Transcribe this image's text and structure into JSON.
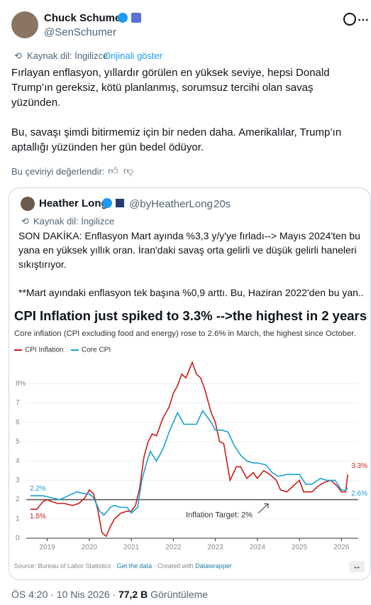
{
  "tweet": {
    "name": "Chuck Schumer",
    "handle": "@SenSchumer",
    "translate_note": "Kaynak dil: İngilizce",
    "show_original": "Orijinali göster",
    "paragraphs": [
      "Fırlayan enflasyon, yıllardır görülen en yüksek seviye, hepsi Donald Trump’ın gereksiz, kötü planlanmış, sorumsuz tercihi olan savaş yüzünden.",
      "Bu, savaşı şimdi bitirmemiz için bir neden daha. Amerikalılar, Trump’ın aptallığı yüzünden her gün bedel ödüyor."
    ],
    "rate": "Bu çeviriyi değerlendir:",
    "time": "ÖS 4:20 · 10 Nis 2026 ·",
    "views": "77,2 B",
    "views_label": "Görüntüleme"
  },
  "quote": {
    "name": "Heather Long",
    "handle": "@byHeatherLong",
    "age": "20s",
    "translate_note": "Kaynak dil: İngilizce",
    "paragraphs": [
      "SON DAKİKA: Enflasyon Mart ayında %3,3 y/y'ye fırladı--> Mayıs 2024'ten bu yana en yüksek yıllık oran. İran'daki savaş orta gelirli ve düşük gelirli haneleri sıkıştırıyor.",
      "**Mart ayındaki enflasyon tek başına %0,9 arttı. Bu, Haziran 2022'den bu yan..."
    ]
  },
  "chart_data": {
    "type": "line",
    "title": "CPI Inflation just spiked to 3.3% -->the highest in 2 years",
    "subtitle": "Core inflation (CPI excluding food and energy) rose to 2.6% in March, the highest since October.",
    "xlim": [
      2018.5,
      2026.4
    ],
    "xticks": [
      2019,
      2020,
      2021,
      2022,
      2023,
      2024,
      2025,
      2026
    ],
    "ylim": [
      0,
      9.3
    ],
    "yticks": [
      0,
      1,
      2,
      3,
      4,
      5,
      6,
      7,
      {
        "value": 8,
        "label": "8%"
      }
    ],
    "grid": true,
    "series": [
      {
        "name": "CPI Inflation",
        "color": "#c71e1d",
        "start_label": "1.5%",
        "end_label": "3.3%",
        "x": [
          2018.6,
          2018.75,
          2018.9,
          2019.0,
          2019.1,
          2019.25,
          2019.4,
          2019.6,
          2019.75,
          2019.9,
          2020.0,
          2020.1,
          2020.2,
          2020.3,
          2020.4,
          2020.5,
          2020.6,
          2020.75,
          2020.9,
          2021.0,
          2021.1,
          2021.2,
          2021.3,
          2021.4,
          2021.5,
          2021.6,
          2021.75,
          2021.9,
          2022.0,
          2022.1,
          2022.2,
          2022.3,
          2022.45,
          2022.55,
          2022.65,
          2022.75,
          2022.9,
          2023.0,
          2023.1,
          2023.2,
          2023.35,
          2023.5,
          2023.6,
          2023.75,
          2023.9,
          2024.0,
          2024.15,
          2024.3,
          2024.45,
          2024.55,
          2024.7,
          2024.85,
          2025.0,
          2025.1,
          2025.3,
          2025.45,
          2025.6,
          2025.75,
          2025.9,
          2026.0,
          2026.1,
          2026.15
        ],
        "values": [
          1.5,
          1.5,
          1.9,
          2.0,
          1.9,
          1.8,
          1.8,
          1.7,
          1.8,
          2.1,
          2.5,
          2.3,
          1.5,
          0.3,
          0.1,
          0.6,
          1.0,
          1.3,
          1.4,
          1.4,
          1.7,
          2.6,
          4.2,
          5.0,
          5.4,
          5.3,
          6.2,
          6.8,
          7.5,
          7.9,
          8.5,
          8.3,
          9.1,
          8.5,
          8.3,
          7.7,
          6.5,
          6.0,
          5.0,
          4.9,
          3.0,
          3.7,
          3.7,
          3.1,
          3.4,
          3.1,
          3.5,
          3.3,
          3.0,
          2.5,
          2.4,
          2.7,
          3.0,
          2.4,
          2.4,
          2.7,
          2.9,
          3.0,
          2.7,
          2.4,
          2.4,
          3.3
        ]
      },
      {
        "name": "Core CPI",
        "color": "#18a1cd",
        "start_label": "2.2%",
        "end_label": "2.6%",
        "x": [
          2018.6,
          2018.9,
          2019.1,
          2019.3,
          2019.5,
          2019.7,
          2019.9,
          2020.0,
          2020.1,
          2020.25,
          2020.35,
          2020.5,
          2020.6,
          2020.75,
          2020.9,
          2021.0,
          2021.15,
          2021.25,
          2021.35,
          2021.45,
          2021.6,
          2021.75,
          2021.9,
          2022.0,
          2022.1,
          2022.25,
          2022.4,
          2022.55,
          2022.7,
          2022.8,
          2022.9,
          2023.0,
          2023.15,
          2023.3,
          2023.45,
          2023.6,
          2023.75,
          2023.9,
          2024.0,
          2024.2,
          2024.35,
          2024.5,
          2024.7,
          2024.85,
          2025.0,
          2025.15,
          2025.3,
          2025.5,
          2025.65,
          2025.85,
          2026.0,
          2026.1,
          2026.15
        ],
        "values": [
          2.2,
          2.2,
          2.1,
          2.0,
          2.2,
          2.4,
          2.3,
          2.3,
          2.1,
          1.4,
          1.2,
          1.6,
          1.7,
          1.6,
          1.6,
          1.3,
          1.6,
          3.0,
          3.8,
          4.5,
          4.0,
          4.6,
          5.5,
          6.0,
          6.5,
          5.9,
          5.9,
          5.9,
          6.6,
          6.3,
          6.0,
          5.6,
          5.6,
          5.5,
          4.8,
          4.3,
          4.0,
          3.9,
          3.9,
          3.8,
          3.4,
          3.2,
          3.3,
          3.3,
          3.3,
          2.8,
          2.8,
          3.1,
          3.0,
          3.0,
          2.5,
          2.5,
          2.6
        ]
      }
    ],
    "target": {
      "value": 2,
      "label": "Inflation Target: 2%"
    },
    "footer": [
      "Source: Bureau of Labor Statistics",
      "Get the data",
      "Created with",
      "Datawrapper"
    ]
  }
}
